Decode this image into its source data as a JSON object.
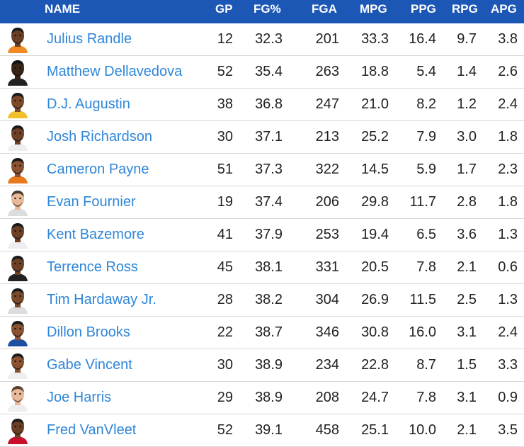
{
  "header": {
    "name": "NAME",
    "gp": "GP",
    "fg": "FG%",
    "fga": "FGA",
    "mpg": "MPG",
    "ppg": "PPG",
    "rpg": "RPG",
    "apg": "APG"
  },
  "rows": [
    {
      "name": "Julius Randle",
      "gp": "12",
      "fg": "32.3",
      "fga": "201",
      "mpg": "33.3",
      "ppg": "16.4",
      "rpg": "9.7",
      "apg": "3.8",
      "skin": "#6b3f24",
      "hair": "#1a1a1a",
      "jersey": "#f08a24"
    },
    {
      "name": "Matthew Dellavedova",
      "gp": "52",
      "fg": "35.4",
      "fga": "263",
      "mpg": "18.8",
      "ppg": "5.4",
      "rpg": "1.4",
      "apg": "2.6",
      "skin": "#3a2416",
      "hair": "#111111",
      "jersey": "#222222"
    },
    {
      "name": "D.J. Augustin",
      "gp": "38",
      "fg": "36.8",
      "fga": "247",
      "mpg": "21.0",
      "ppg": "8.2",
      "rpg": "1.2",
      "apg": "2.4",
      "skin": "#7a4a2b",
      "hair": "#1a1a1a",
      "jersey": "#f2c028"
    },
    {
      "name": "Josh Richardson",
      "gp": "30",
      "fg": "37.1",
      "fga": "213",
      "mpg": "25.2",
      "ppg": "7.9",
      "rpg": "3.0",
      "apg": "1.8",
      "skin": "#6e4126",
      "hair": "#1a1a1a",
      "jersey": "#eeeeee"
    },
    {
      "name": "Cameron Payne",
      "gp": "51",
      "fg": "37.3",
      "fga": "322",
      "mpg": "14.5",
      "ppg": "5.9",
      "rpg": "1.7",
      "apg": "2.3",
      "skin": "#8a5230",
      "hair": "#1a1a1a",
      "jersey": "#e87a1e"
    },
    {
      "name": "Evan Fournier",
      "gp": "19",
      "fg": "37.4",
      "fga": "206",
      "mpg": "29.8",
      "ppg": "11.7",
      "rpg": "2.8",
      "apg": "1.8",
      "skin": "#e8b99a",
      "hair": "#4a3a30",
      "jersey": "#dddddd"
    },
    {
      "name": "Kent Bazemore",
      "gp": "41",
      "fg": "37.9",
      "fga": "253",
      "mpg": "19.4",
      "ppg": "6.5",
      "rpg": "3.6",
      "apg": "1.3",
      "skin": "#6b3f24",
      "hair": "#1a1a1a",
      "jersey": "#eeeeee"
    },
    {
      "name": "Terrence Ross",
      "gp": "45",
      "fg": "38.1",
      "fga": "331",
      "mpg": "20.5",
      "ppg": "7.8",
      "rpg": "2.1",
      "apg": "0.6",
      "skin": "#6e4126",
      "hair": "#1a1a1a",
      "jersey": "#222222"
    },
    {
      "name": "Tim Hardaway Jr.",
      "gp": "28",
      "fg": "38.2",
      "fga": "304",
      "mpg": "26.9",
      "ppg": "11.5",
      "rpg": "2.5",
      "apg": "1.3",
      "skin": "#7a4a2b",
      "hair": "#1a1a1a",
      "jersey": "#dddddd"
    },
    {
      "name": "Dillon Brooks",
      "gp": "22",
      "fg": "38.7",
      "fga": "346",
      "mpg": "30.8",
      "ppg": "16.0",
      "rpg": "3.1",
      "apg": "2.4",
      "skin": "#8a5230",
      "hair": "#1a1a1a",
      "jersey": "#1d4fa0"
    },
    {
      "name": "Gabe Vincent",
      "gp": "30",
      "fg": "38.9",
      "fga": "234",
      "mpg": "22.8",
      "ppg": "8.7",
      "rpg": "1.5",
      "apg": "3.3",
      "skin": "#8a5230",
      "hair": "#1a1a1a",
      "jersey": "#eeeeee"
    },
    {
      "name": "Joe Harris",
      "gp": "29",
      "fg": "38.9",
      "fga": "208",
      "mpg": "24.7",
      "ppg": "7.8",
      "rpg": "3.1",
      "apg": "0.9",
      "skin": "#e8b99a",
      "hair": "#5a4030",
      "jersey": "#eeeeee"
    },
    {
      "name": "Fred VanVleet",
      "gp": "52",
      "fg": "39.1",
      "fga": "458",
      "mpg": "25.1",
      "ppg": "10.0",
      "rpg": "2.1",
      "apg": "3.5",
      "skin": "#6b3f24",
      "hair": "#1a1a1a",
      "jersey": "#c8102e"
    }
  ]
}
